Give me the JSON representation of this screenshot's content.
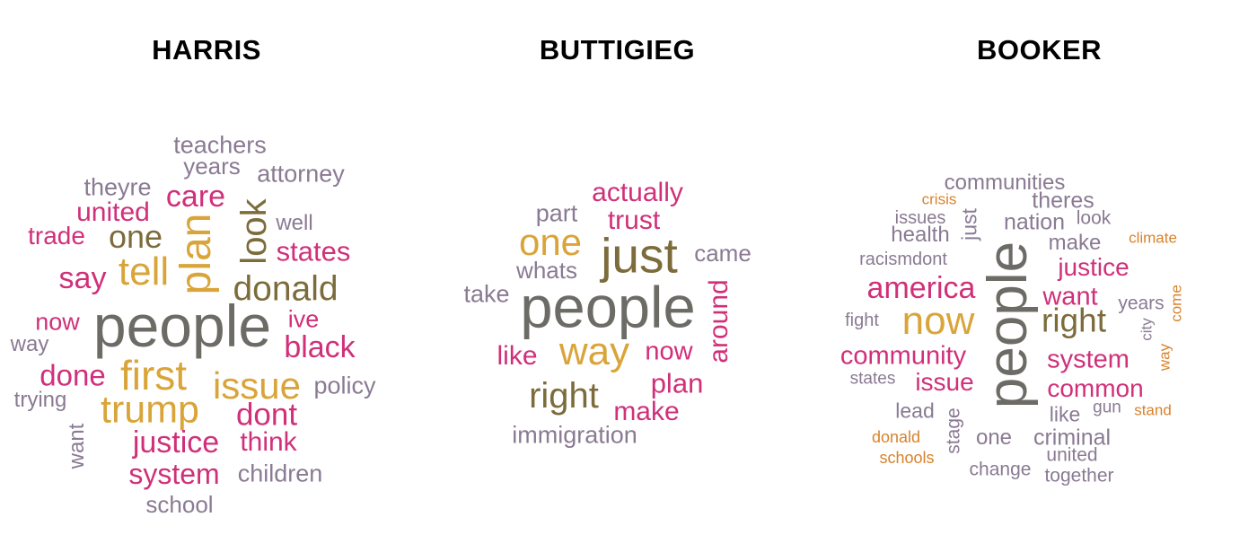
{
  "palette": {
    "pink": "#d0307a",
    "gold": "#d9a53a",
    "olive": "#7c6c3c",
    "gray": "#6d6b66",
    "lavender": "#8a7a93",
    "orange": "#d9822b"
  },
  "panels": [
    {
      "title": "HARRIS",
      "words": [
        {
          "text": "teachers",
          "color": "lavender",
          "rotated": false
        },
        {
          "text": "years",
          "color": "lavender",
          "rotated": false
        },
        {
          "text": "attorney",
          "color": "lavender",
          "rotated": false
        },
        {
          "text": "theyre",
          "color": "lavender",
          "rotated": false
        },
        {
          "text": "care",
          "color": "pink",
          "rotated": false
        },
        {
          "text": "united",
          "color": "pink",
          "rotated": false
        },
        {
          "text": "look",
          "color": "olive",
          "rotated": true
        },
        {
          "text": "well",
          "color": "lavender",
          "rotated": false
        },
        {
          "text": "trade",
          "color": "pink",
          "rotated": false
        },
        {
          "text": "one",
          "color": "olive",
          "rotated": false
        },
        {
          "text": "plan",
          "color": "gold",
          "rotated": true
        },
        {
          "text": "states",
          "color": "pink",
          "rotated": false
        },
        {
          "text": "say",
          "color": "pink",
          "rotated": false
        },
        {
          "text": "tell",
          "color": "gold",
          "rotated": false
        },
        {
          "text": "donald",
          "color": "olive",
          "rotated": false
        },
        {
          "text": "now",
          "color": "pink",
          "rotated": false
        },
        {
          "text": "people",
          "color": "gray",
          "rotated": false
        },
        {
          "text": "ive",
          "color": "pink",
          "rotated": false
        },
        {
          "text": "way",
          "color": "lavender",
          "rotated": false
        },
        {
          "text": "black",
          "color": "pink",
          "rotated": false
        },
        {
          "text": "done",
          "color": "pink",
          "rotated": false
        },
        {
          "text": "first",
          "color": "gold",
          "rotated": false
        },
        {
          "text": "issue",
          "color": "gold",
          "rotated": false
        },
        {
          "text": "policy",
          "color": "lavender",
          "rotated": false
        },
        {
          "text": "trying",
          "color": "lavender",
          "rotated": false
        },
        {
          "text": "trump",
          "color": "gold",
          "rotated": false
        },
        {
          "text": "dont",
          "color": "pink",
          "rotated": false
        },
        {
          "text": "want",
          "color": "lavender",
          "rotated": true
        },
        {
          "text": "justice",
          "color": "pink",
          "rotated": false
        },
        {
          "text": "think",
          "color": "pink",
          "rotated": false
        },
        {
          "text": "system",
          "color": "pink",
          "rotated": false
        },
        {
          "text": "children",
          "color": "lavender",
          "rotated": false
        },
        {
          "text": "school",
          "color": "lavender",
          "rotated": false
        }
      ]
    },
    {
      "title": "BUTTIGIEG",
      "words": [
        {
          "text": "actually",
          "color": "pink",
          "rotated": false
        },
        {
          "text": "part",
          "color": "lavender",
          "rotated": false
        },
        {
          "text": "trust",
          "color": "pink",
          "rotated": false
        },
        {
          "text": "one",
          "color": "gold",
          "rotated": false
        },
        {
          "text": "just",
          "color": "olive",
          "rotated": false
        },
        {
          "text": "came",
          "color": "lavender",
          "rotated": false
        },
        {
          "text": "whats",
          "color": "lavender",
          "rotated": false
        },
        {
          "text": "take",
          "color": "lavender",
          "rotated": false
        },
        {
          "text": "people",
          "color": "gray",
          "rotated": false
        },
        {
          "text": "around",
          "color": "pink",
          "rotated": true
        },
        {
          "text": "like",
          "color": "pink",
          "rotated": false
        },
        {
          "text": "way",
          "color": "gold",
          "rotated": false
        },
        {
          "text": "now",
          "color": "pink",
          "rotated": false
        },
        {
          "text": "plan",
          "color": "pink",
          "rotated": false
        },
        {
          "text": "right",
          "color": "olive",
          "rotated": false
        },
        {
          "text": "make",
          "color": "pink",
          "rotated": false
        },
        {
          "text": "immigration",
          "color": "lavender",
          "rotated": false
        }
      ]
    },
    {
      "title": "BOOKER",
      "words": [
        {
          "text": "communities",
          "color": "lavender",
          "rotated": false
        },
        {
          "text": "crisis",
          "color": "orange",
          "rotated": false
        },
        {
          "text": "theres",
          "color": "lavender",
          "rotated": false
        },
        {
          "text": "issues",
          "color": "lavender",
          "rotated": false
        },
        {
          "text": "just",
          "color": "lavender",
          "rotated": true
        },
        {
          "text": "nation",
          "color": "lavender",
          "rotated": false
        },
        {
          "text": "look",
          "color": "lavender",
          "rotated": false
        },
        {
          "text": "health",
          "color": "lavender",
          "rotated": false
        },
        {
          "text": "make",
          "color": "lavender",
          "rotated": false
        },
        {
          "text": "climate",
          "color": "orange",
          "rotated": false
        },
        {
          "text": "racismdont",
          "color": "lavender",
          "rotated": false
        },
        {
          "text": "justice",
          "color": "pink",
          "rotated": false
        },
        {
          "text": "america",
          "color": "pink",
          "rotated": false
        },
        {
          "text": "people",
          "color": "gray",
          "rotated": true
        },
        {
          "text": "want",
          "color": "pink",
          "rotated": false
        },
        {
          "text": "years",
          "color": "lavender",
          "rotated": false
        },
        {
          "text": "come",
          "color": "orange",
          "rotated": true
        },
        {
          "text": "fight",
          "color": "lavender",
          "rotated": false
        },
        {
          "text": "now",
          "color": "gold",
          "rotated": false
        },
        {
          "text": "right",
          "color": "olive",
          "rotated": false
        },
        {
          "text": "city",
          "color": "lavender",
          "rotated": true
        },
        {
          "text": "way",
          "color": "orange",
          "rotated": true
        },
        {
          "text": "community",
          "color": "pink",
          "rotated": false
        },
        {
          "text": "system",
          "color": "pink",
          "rotated": false
        },
        {
          "text": "states",
          "color": "lavender",
          "rotated": false
        },
        {
          "text": "issue",
          "color": "pink",
          "rotated": false
        },
        {
          "text": "common",
          "color": "pink",
          "rotated": false
        },
        {
          "text": "lead",
          "color": "lavender",
          "rotated": false
        },
        {
          "text": "stage",
          "color": "lavender",
          "rotated": true
        },
        {
          "text": "like",
          "color": "lavender",
          "rotated": false
        },
        {
          "text": "gun",
          "color": "lavender",
          "rotated": false
        },
        {
          "text": "stand",
          "color": "orange",
          "rotated": false
        },
        {
          "text": "donald",
          "color": "orange",
          "rotated": false
        },
        {
          "text": "one",
          "color": "lavender",
          "rotated": false
        },
        {
          "text": "criminal",
          "color": "lavender",
          "rotated": false
        },
        {
          "text": "schools",
          "color": "orange",
          "rotated": false
        },
        {
          "text": "united",
          "color": "lavender",
          "rotated": false
        },
        {
          "text": "change",
          "color": "lavender",
          "rotated": false
        },
        {
          "text": "together",
          "color": "lavender",
          "rotated": false
        }
      ]
    }
  ]
}
